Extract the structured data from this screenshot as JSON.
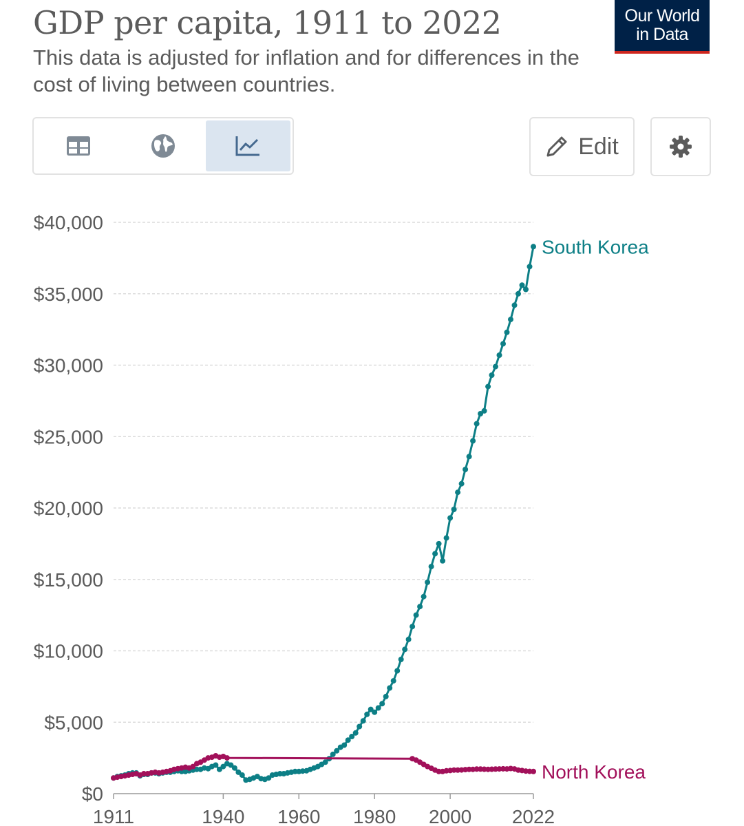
{
  "header": {
    "title": "GDP per capita, 1911 to 2022",
    "subtitle": "This data is adjusted for inflation and for differences in the cost of living between countries.",
    "logo_line1": "Our World",
    "logo_line2": "in Data"
  },
  "toolbar": {
    "tabs": [
      {
        "name": "table",
        "icon": "table-icon",
        "active": false
      },
      {
        "name": "map",
        "icon": "globe-icon",
        "active": false
      },
      {
        "name": "chart",
        "icon": "line-chart-icon",
        "active": true
      }
    ],
    "edit_label": "Edit",
    "settings_icon": "gear-icon"
  },
  "colors": {
    "south_korea": "#0d7f86",
    "north_korea": "#a2105a",
    "grid": "#dcdcdc",
    "text": "#5b5b5b",
    "logo_bg": "#002147",
    "logo_accent": "#ce261e",
    "active_tab": "#dbe5f0"
  },
  "chart_data": {
    "type": "line",
    "title": "GDP per capita, 1911 to 2022",
    "xlabel": "",
    "ylabel": "",
    "xlim": [
      1911,
      2022
    ],
    "ylim": [
      0,
      40000
    ],
    "grid": true,
    "legend": "end-labels",
    "y_ticks": [
      {
        "value": 0,
        "label": "$0"
      },
      {
        "value": 5000,
        "label": "$5,000"
      },
      {
        "value": 10000,
        "label": "$10,000"
      },
      {
        "value": 15000,
        "label": "$15,000"
      },
      {
        "value": 20000,
        "label": "$20,000"
      },
      {
        "value": 25000,
        "label": "$25,000"
      },
      {
        "value": 30000,
        "label": "$30,000"
      },
      {
        "value": 35000,
        "label": "$35,000"
      },
      {
        "value": 40000,
        "label": "$40,000"
      }
    ],
    "x_ticks": [
      {
        "value": 1911,
        "label": "1911"
      },
      {
        "value": 1940,
        "label": "1940"
      },
      {
        "value": 1960,
        "label": "1960"
      },
      {
        "value": 1980,
        "label": "1980"
      },
      {
        "value": 2000,
        "label": "2000"
      },
      {
        "value": 2022,
        "label": "2022"
      }
    ],
    "series": [
      {
        "name": "South Korea",
        "color": "#0d7f86",
        "points": [
          [
            1911,
            1100
          ],
          [
            1912,
            1200
          ],
          [
            1913,
            1250
          ],
          [
            1914,
            1300
          ],
          [
            1915,
            1400
          ],
          [
            1916,
            1450
          ],
          [
            1917,
            1450
          ],
          [
            1918,
            1250
          ],
          [
            1919,
            1350
          ],
          [
            1920,
            1350
          ],
          [
            1921,
            1450
          ],
          [
            1922,
            1450
          ],
          [
            1923,
            1400
          ],
          [
            1924,
            1450
          ],
          [
            1925,
            1500
          ],
          [
            1926,
            1500
          ],
          [
            1927,
            1550
          ],
          [
            1928,
            1600
          ],
          [
            1929,
            1550
          ],
          [
            1930,
            1550
          ],
          [
            1931,
            1600
          ],
          [
            1932,
            1650
          ],
          [
            1933,
            1700
          ],
          [
            1934,
            1700
          ],
          [
            1935,
            1800
          ],
          [
            1936,
            1750
          ],
          [
            1937,
            1900
          ],
          [
            1938,
            2000
          ],
          [
            1939,
            1700
          ],
          [
            1940,
            1900
          ],
          [
            1941,
            2100
          ],
          [
            1942,
            2000
          ],
          [
            1943,
            1800
          ],
          [
            1944,
            1500
          ],
          [
            1945,
            1300
          ],
          [
            1946,
            950
          ],
          [
            1947,
            1000
          ],
          [
            1948,
            1100
          ],
          [
            1949,
            1200
          ],
          [
            1950,
            1050
          ],
          [
            1951,
            1000
          ],
          [
            1952,
            1100
          ],
          [
            1953,
            1300
          ],
          [
            1954,
            1350
          ],
          [
            1955,
            1400
          ],
          [
            1956,
            1400
          ],
          [
            1957,
            1450
          ],
          [
            1958,
            1500
          ],
          [
            1959,
            1550
          ],
          [
            1960,
            1550
          ],
          [
            1961,
            1580
          ],
          [
            1962,
            1600
          ],
          [
            1963,
            1700
          ],
          [
            1964,
            1800
          ],
          [
            1965,
            1900
          ],
          [
            1966,
            2050
          ],
          [
            1967,
            2200
          ],
          [
            1968,
            2450
          ],
          [
            1969,
            2750
          ],
          [
            1970,
            3000
          ],
          [
            1971,
            3250
          ],
          [
            1972,
            3400
          ],
          [
            1973,
            3750
          ],
          [
            1974,
            4000
          ],
          [
            1975,
            4250
          ],
          [
            1976,
            4700
          ],
          [
            1977,
            5100
          ],
          [
            1978,
            5550
          ],
          [
            1979,
            5900
          ],
          [
            1980,
            5700
          ],
          [
            1981,
            6000
          ],
          [
            1982,
            6300
          ],
          [
            1983,
            6800
          ],
          [
            1984,
            7400
          ],
          [
            1985,
            7900
          ],
          [
            1986,
            8600
          ],
          [
            1987,
            9400
          ],
          [
            1988,
            10100
          ],
          [
            1989,
            10800
          ],
          [
            1990,
            11700
          ],
          [
            1991,
            12500
          ],
          [
            1992,
            13100
          ],
          [
            1993,
            13800
          ],
          [
            1994,
            14800
          ],
          [
            1995,
            15900
          ],
          [
            1996,
            16800
          ],
          [
            1997,
            17500
          ],
          [
            1998,
            16300
          ],
          [
            1999,
            17900
          ],
          [
            2000,
            19300
          ],
          [
            2001,
            19900
          ],
          [
            2002,
            21100
          ],
          [
            2003,
            21700
          ],
          [
            2004,
            22700
          ],
          [
            2005,
            23600
          ],
          [
            2006,
            24700
          ],
          [
            2007,
            25900
          ],
          [
            2008,
            26600
          ],
          [
            2009,
            26800
          ],
          [
            2010,
            28500
          ],
          [
            2011,
            29300
          ],
          [
            2012,
            29900
          ],
          [
            2013,
            30700
          ],
          [
            2014,
            31500
          ],
          [
            2015,
            32300
          ],
          [
            2016,
            33200
          ],
          [
            2017,
            34200
          ],
          [
            2018,
            35000
          ],
          [
            2019,
            35600
          ],
          [
            2020,
            35300
          ],
          [
            2021,
            36900
          ],
          [
            2022,
            38300
          ]
        ]
      },
      {
        "name": "North Korea",
        "color": "#a2105a",
        "points": [
          [
            1911,
            1100
          ],
          [
            1912,
            1150
          ],
          [
            1913,
            1200
          ],
          [
            1914,
            1250
          ],
          [
            1915,
            1300
          ],
          [
            1916,
            1350
          ],
          [
            1917,
            1400
          ],
          [
            1918,
            1300
          ],
          [
            1919,
            1400
          ],
          [
            1920,
            1400
          ],
          [
            1921,
            1450
          ],
          [
            1922,
            1500
          ],
          [
            1923,
            1450
          ],
          [
            1924,
            1500
          ],
          [
            1925,
            1550
          ],
          [
            1926,
            1600
          ],
          [
            1927,
            1700
          ],
          [
            1928,
            1750
          ],
          [
            1929,
            1800
          ],
          [
            1930,
            1850
          ],
          [
            1931,
            1800
          ],
          [
            1932,
            1900
          ],
          [
            1933,
            2100
          ],
          [
            1934,
            2200
          ],
          [
            1935,
            2350
          ],
          [
            1936,
            2500
          ],
          [
            1937,
            2550
          ],
          [
            1938,
            2650
          ],
          [
            1939,
            2550
          ],
          [
            1940,
            2600
          ],
          [
            1941,
            2500
          ],
          [
            1990,
            2450
          ],
          [
            1991,
            2350
          ],
          [
            1992,
            2200
          ],
          [
            1993,
            2050
          ],
          [
            1994,
            1900
          ],
          [
            1995,
            1780
          ],
          [
            1996,
            1650
          ],
          [
            1997,
            1550
          ],
          [
            1998,
            1550
          ],
          [
            1999,
            1600
          ],
          [
            2000,
            1620
          ],
          [
            2001,
            1650
          ],
          [
            2002,
            1650
          ],
          [
            2003,
            1660
          ],
          [
            2004,
            1680
          ],
          [
            2005,
            1700
          ],
          [
            2006,
            1700
          ],
          [
            2007,
            1720
          ],
          [
            2008,
            1720
          ],
          [
            2009,
            1710
          ],
          [
            2010,
            1700
          ],
          [
            2011,
            1710
          ],
          [
            2012,
            1720
          ],
          [
            2013,
            1730
          ],
          [
            2014,
            1740
          ],
          [
            2015,
            1730
          ],
          [
            2016,
            1760
          ],
          [
            2017,
            1730
          ],
          [
            2018,
            1650
          ],
          [
            2019,
            1620
          ],
          [
            2020,
            1580
          ],
          [
            2021,
            1560
          ],
          [
            2022,
            1550
          ]
        ]
      }
    ]
  }
}
